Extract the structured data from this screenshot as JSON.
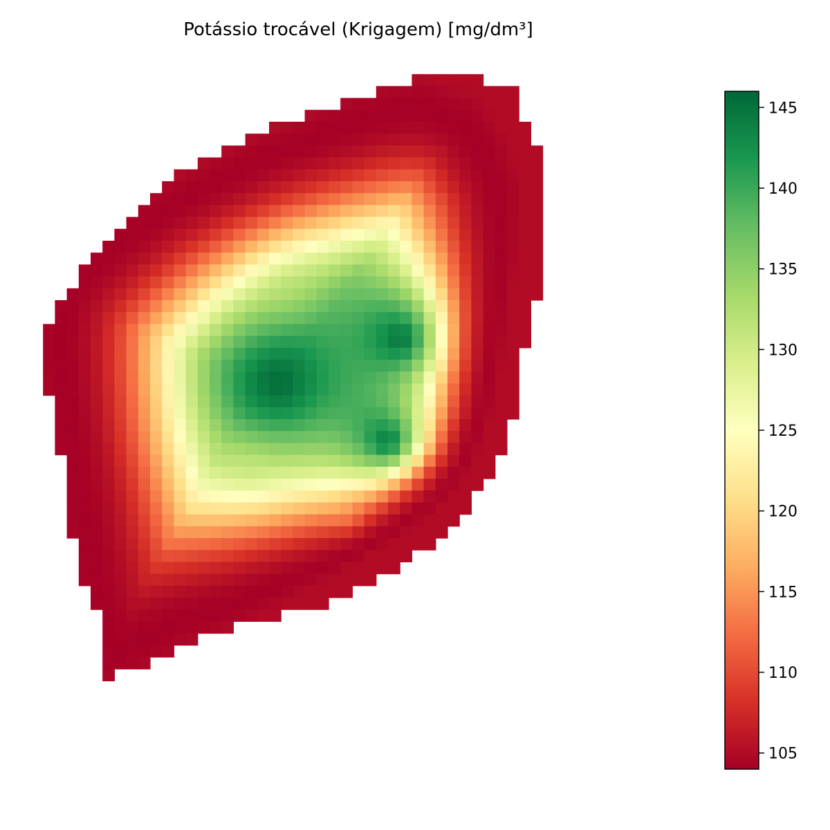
{
  "chart_data": {
    "type": "heatmap",
    "title": "Potássio trocável (Krigagem) [mg/dm³]",
    "xlabel": "",
    "ylabel": "",
    "axes_visible": false,
    "grid": false,
    "colormap": "RdYlGn",
    "colorbar": {
      "placement": "right",
      "vmin": 104,
      "vmax": 146,
      "ticks": [
        105,
        110,
        115,
        120,
        125,
        130,
        135,
        140,
        145
      ],
      "tick_labels": [
        "105",
        "110",
        "115",
        "120",
        "125",
        "130",
        "135",
        "140",
        "145"
      ]
    },
    "colorscale": [
      "#a50026",
      "#d73027",
      "#f46d43",
      "#fdae61",
      "#fee08b",
      "#ffffbf",
      "#d9ef8b",
      "#a6d96a",
      "#66bd63",
      "#1a9850",
      "#006837"
    ],
    "value_model": {
      "core_value": 146,
      "edge_value": 104,
      "cores": [
        {
          "x": 0.385,
          "y": 0.5
        },
        {
          "x": 0.575,
          "y": 0.43
        },
        {
          "x": 0.555,
          "y": 0.59
        }
      ],
      "field_values": [
        {
          "x": 0.4,
          "y": 0.355,
          "value": 132
        },
        {
          "x": 0.34,
          "y": 0.63,
          "value": 131
        },
        {
          "x": 0.5,
          "y": 0.72,
          "value": 128
        }
      ]
    },
    "domain_polygon": [
      [
        0.15,
        0.24
      ],
      [
        0.25,
        0.16
      ],
      [
        0.33,
        0.12
      ],
      [
        0.43,
        0.082
      ],
      [
        0.53,
        0.049
      ],
      [
        0.61,
        0.025
      ],
      [
        0.69,
        0.02
      ],
      [
        0.75,
        0.045
      ],
      [
        0.77,
        0.09
      ],
      [
        0.79,
        0.14
      ],
      [
        0.79,
        0.26
      ],
      [
        0.79,
        0.35
      ],
      [
        0.77,
        0.44
      ],
      [
        0.76,
        0.52
      ],
      [
        0.74,
        0.59
      ],
      [
        0.72,
        0.64
      ],
      [
        0.66,
        0.72
      ],
      [
        0.58,
        0.785
      ],
      [
        0.48,
        0.835
      ],
      [
        0.4,
        0.86
      ],
      [
        0.32,
        0.88
      ],
      [
        0.26,
        0.898
      ],
      [
        0.21,
        0.92
      ],
      [
        0.165,
        0.945
      ],
      [
        0.12,
        0.96
      ],
      [
        0.115,
        0.92
      ],
      [
        0.1,
        0.85
      ],
      [
        0.075,
        0.8
      ],
      [
        0.065,
        0.74
      ],
      [
        0.052,
        0.66
      ],
      [
        0.041,
        0.58
      ],
      [
        0.03,
        0.52
      ],
      [
        0.015,
        0.46
      ],
      [
        0.02,
        0.42
      ],
      [
        0.058,
        0.36
      ],
      [
        0.09,
        0.31
      ],
      [
        0.12,
        0.27
      ]
    ],
    "outer_rim_polygon": [
      [
        0.13,
        0.92
      ],
      [
        0.17,
        0.9
      ],
      [
        0.22,
        0.875
      ],
      [
        0.27,
        0.858
      ],
      [
        0.32,
        0.84
      ],
      [
        0.37,
        0.82
      ],
      [
        0.43,
        0.795
      ],
      [
        0.5,
        0.765
      ],
      [
        0.57,
        0.725
      ],
      [
        0.63,
        0.68
      ],
      [
        0.67,
        0.63
      ],
      [
        0.7,
        0.55
      ],
      [
        0.715,
        0.47
      ],
      [
        0.725,
        0.38
      ],
      [
        0.73,
        0.3
      ],
      [
        0.725,
        0.2
      ],
      [
        0.7,
        0.14
      ],
      [
        0.67,
        0.095
      ],
      [
        0.6,
        0.07
      ],
      [
        0.53,
        0.085
      ],
      [
        0.45,
        0.115
      ],
      [
        0.36,
        0.15
      ],
      [
        0.28,
        0.19
      ],
      [
        0.2,
        0.235
      ],
      [
        0.13,
        0.285
      ],
      [
        0.08,
        0.33
      ],
      [
        0.05,
        0.38
      ],
      [
        0.045,
        0.44
      ],
      [
        0.05,
        0.5
      ],
      [
        0.06,
        0.58
      ],
      [
        0.075,
        0.66
      ],
      [
        0.09,
        0.75
      ],
      [
        0.105,
        0.84
      ]
    ]
  }
}
